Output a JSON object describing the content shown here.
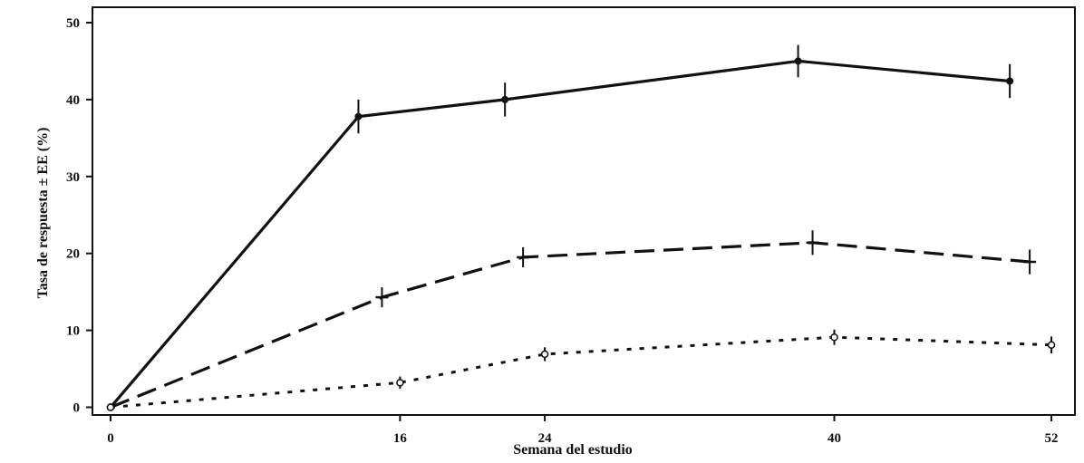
{
  "chart_data": {
    "type": "line",
    "title": "",
    "xlabel": "Semana del estudio",
    "ylabel": "Tasa de respuesta ± EE (%)",
    "x_ticks": [
      0,
      16,
      24,
      40,
      52
    ],
    "y_ticks": [
      0,
      10,
      20,
      30,
      40,
      50
    ],
    "xlim": [
      -1,
      53.3
    ],
    "ylim": [
      -1,
      52
    ],
    "grid": false,
    "legend": "none",
    "series": [
      {
        "line_style": "solid",
        "marker": "filled-circle",
        "color": "#111111",
        "x": [
          0,
          13.7,
          21.8,
          38.0,
          49.7
        ],
        "y": [
          0,
          37.8,
          40.0,
          45.0,
          42.4
        ],
        "err": [
          0,
          2.2,
          2.2,
          2.1,
          2.2
        ]
      },
      {
        "line_style": "dashed",
        "marker": "plus",
        "color": "#111111",
        "x": [
          0,
          15.0,
          22.8,
          38.8,
          50.8
        ],
        "y": [
          0,
          14.3,
          19.5,
          21.4,
          18.9
        ],
        "err": [
          0,
          1.3,
          1.3,
          1.6,
          1.6
        ]
      },
      {
        "line_style": "dotted",
        "marker": "open-circle",
        "color": "#111111",
        "x": [
          0,
          16.0,
          24.0,
          40.0,
          52.0
        ],
        "y": [
          0,
          3.2,
          6.9,
          9.1,
          8.1
        ],
        "err": [
          0,
          0.8,
          0.9,
          1.0,
          1.1
        ]
      }
    ]
  }
}
